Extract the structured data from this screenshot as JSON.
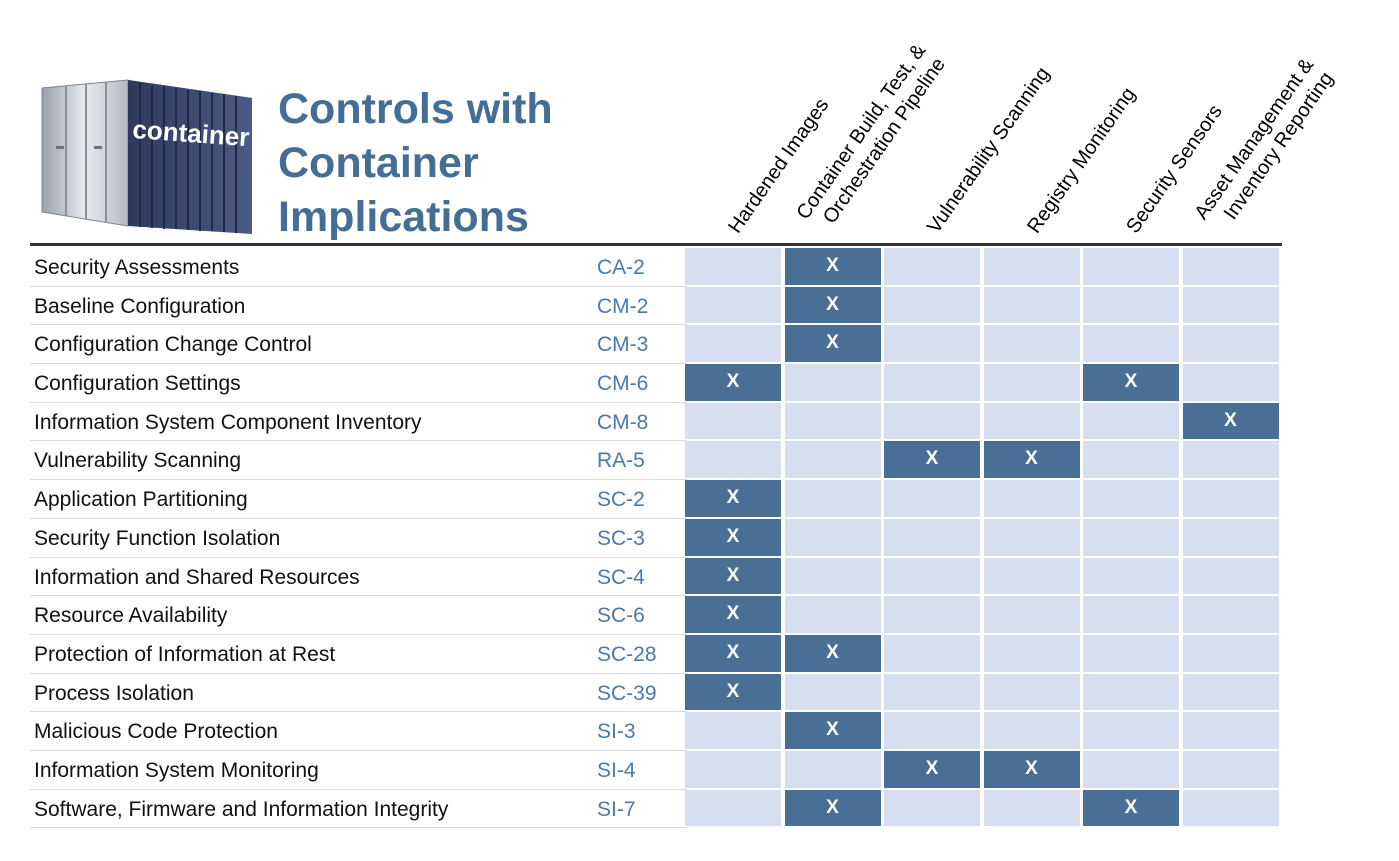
{
  "title": [
    "Controls with",
    "Container",
    "Implications"
  ],
  "logo": {
    "text": "container"
  },
  "columns": [
    {
      "lines": [
        "Hardened Images"
      ]
    },
    {
      "lines": [
        "Container Build, Test, &",
        "Orchestration Pipeline"
      ]
    },
    {
      "lines": [
        "Vulnerability Scanning"
      ]
    },
    {
      "lines": [
        "Registry Monitoring"
      ]
    },
    {
      "lines": [
        "Security Sensors"
      ]
    },
    {
      "lines": [
        "Asset Management &",
        "Inventory Reporting"
      ]
    }
  ],
  "mark": "X",
  "rows": [
    {
      "name": "Security Assessments",
      "code": "CA-2",
      "marks": [
        0,
        1,
        0,
        0,
        0,
        0
      ]
    },
    {
      "name": "Baseline Configuration",
      "code": "CM-2",
      "marks": [
        0,
        1,
        0,
        0,
        0,
        0
      ]
    },
    {
      "name": "Configuration Change Control",
      "code": "CM-3",
      "marks": [
        0,
        1,
        0,
        0,
        0,
        0
      ]
    },
    {
      "name": "Configuration Settings",
      "code": "CM-6",
      "marks": [
        1,
        0,
        0,
        0,
        1,
        0
      ]
    },
    {
      "name": "Information System Component Inventory",
      "code": "CM-8",
      "marks": [
        0,
        0,
        0,
        0,
        0,
        1
      ]
    },
    {
      "name": "Vulnerability Scanning",
      "code": "RA-5",
      "marks": [
        0,
        0,
        1,
        1,
        0,
        0
      ]
    },
    {
      "name": "Application Partitioning",
      "code": "SC-2",
      "marks": [
        1,
        0,
        0,
        0,
        0,
        0
      ]
    },
    {
      "name": "Security Function Isolation",
      "code": "SC-3",
      "marks": [
        1,
        0,
        0,
        0,
        0,
        0
      ]
    },
    {
      "name": "Information and Shared Resources",
      "code": "SC-4",
      "marks": [
        1,
        0,
        0,
        0,
        0,
        0
      ]
    },
    {
      "name": "Resource Availability",
      "code": "SC-6",
      "marks": [
        1,
        0,
        0,
        0,
        0,
        0
      ]
    },
    {
      "name": "Protection of Information at Rest",
      "code": "SC-28",
      "marks": [
        1,
        1,
        0,
        0,
        0,
        0
      ]
    },
    {
      "name": "Process Isolation",
      "code": "SC-39",
      "marks": [
        1,
        0,
        0,
        0,
        0,
        0
      ]
    },
    {
      "name": "Malicious Code Protection",
      "code": "SI-3",
      "marks": [
        0,
        1,
        0,
        0,
        0,
        0
      ]
    },
    {
      "name": "Information System Monitoring",
      "code": "SI-4",
      "marks": [
        0,
        0,
        1,
        1,
        0,
        0
      ]
    },
    {
      "name": "Software, Firmware and Information Integrity",
      "code": "SI-7",
      "marks": [
        0,
        1,
        0,
        0,
        1,
        0
      ]
    }
  ],
  "colors": {
    "accent": "#456e97",
    "cell_on": "#4a6f97",
    "cell_off": "#d6deef",
    "code": "#4d79a6"
  }
}
